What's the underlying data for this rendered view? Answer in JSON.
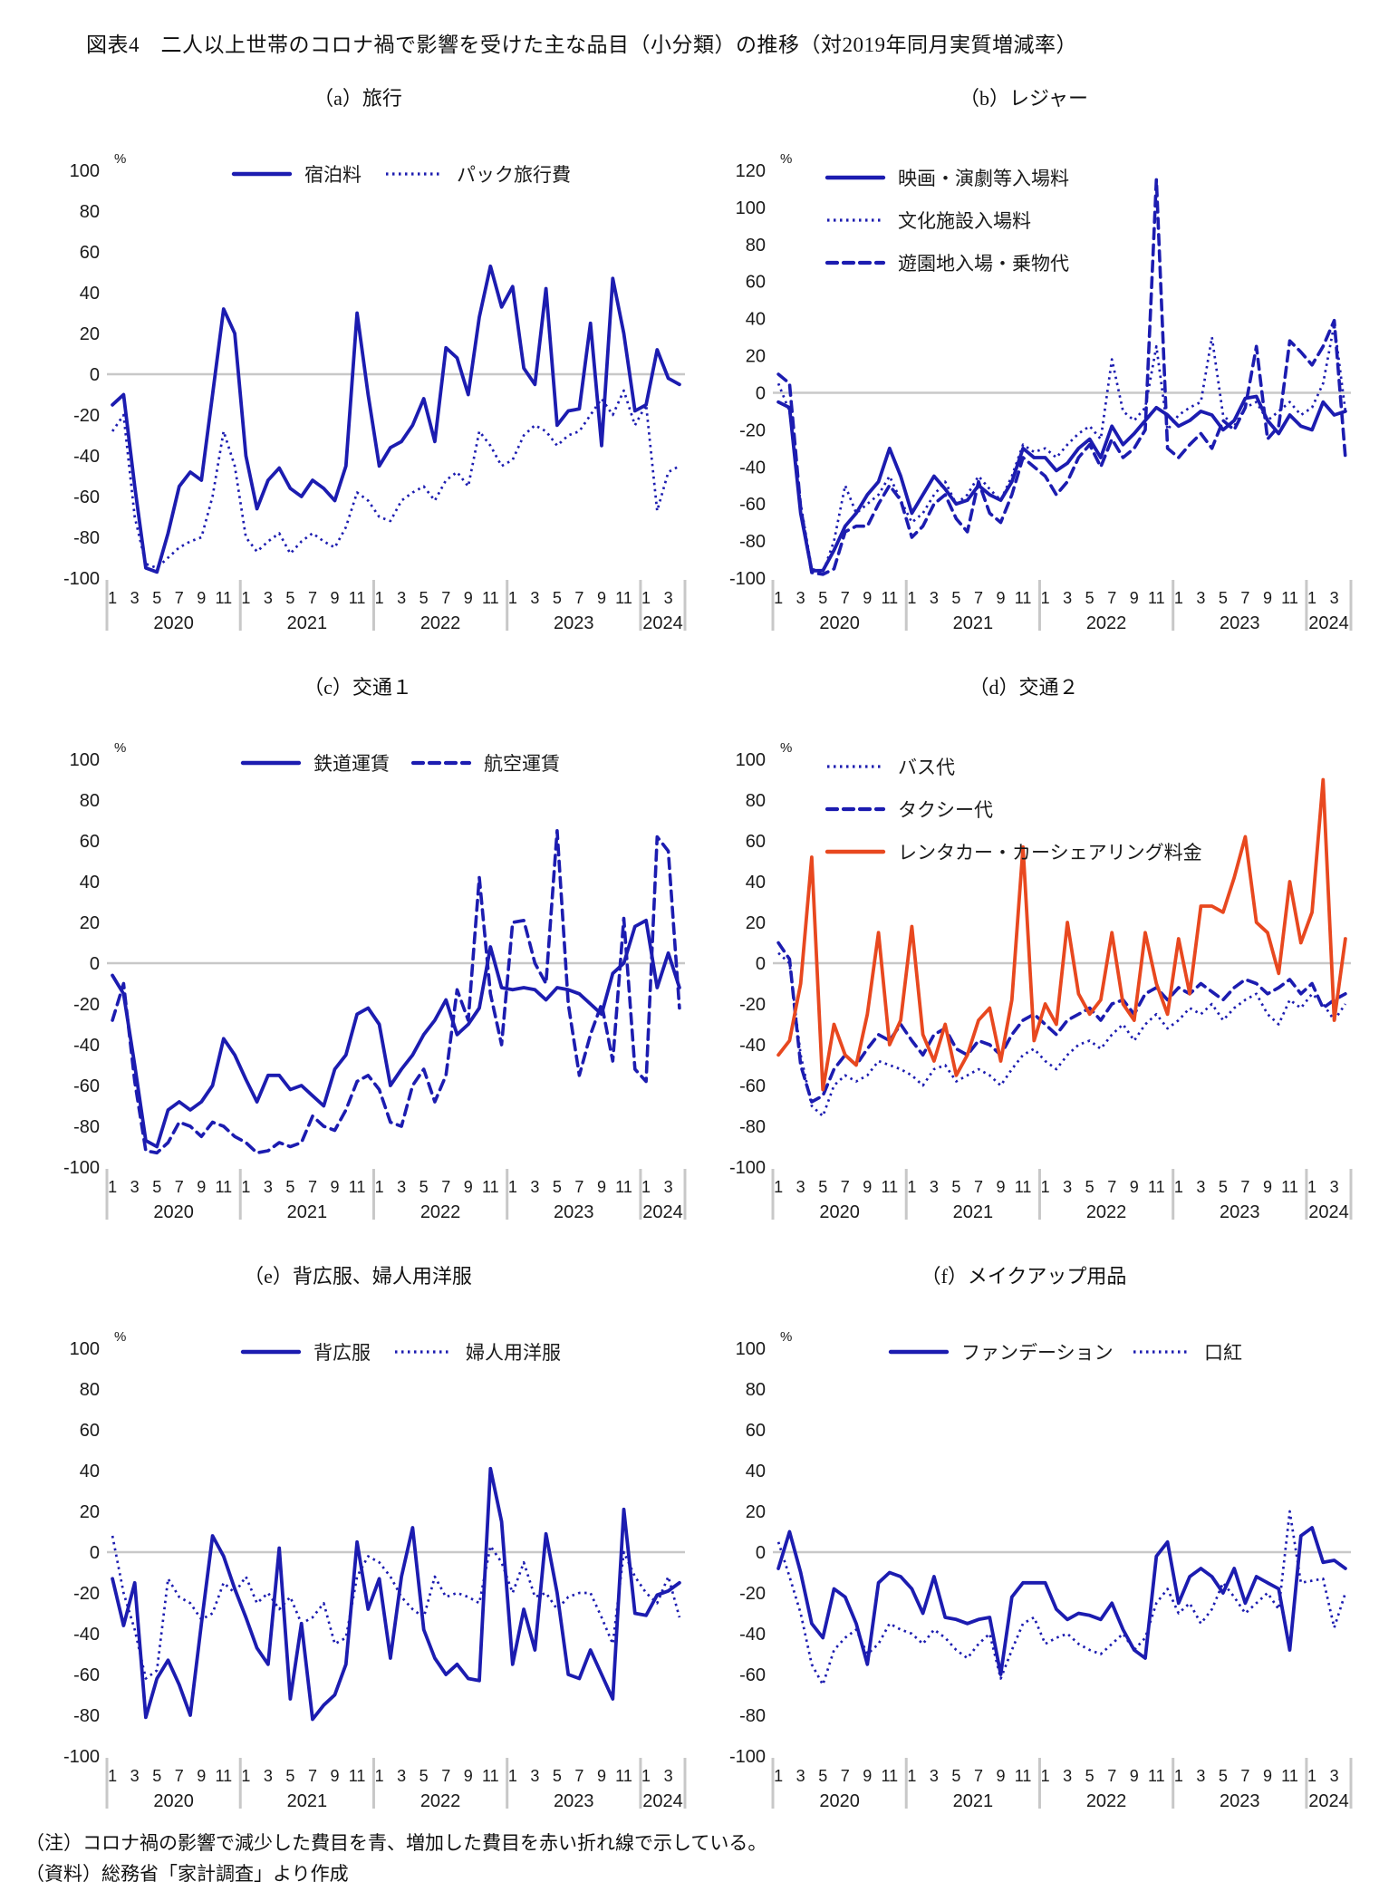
{
  "title": "図表4　二人以上世帯のコロナ禍で影響を受けた主な品目（小分類）の推移（対2019年同月実質増減率）",
  "notes": {
    "note": "（注）コロナ禍の影響で減少した費目を青、増加した費目を赤い折れ線で示している。",
    "source": "（資料）総務省「家計調査」より作成"
  },
  "colors": {
    "blue": "#1c1cb0",
    "red": "#e8481f",
    "grid": "#c8c8c8",
    "text": "#1a1a1a"
  },
  "axis": {
    "unit": "%",
    "month_ticks": [
      "1",
      "3",
      "5",
      "7",
      "9",
      "11"
    ],
    "month_ticks_final_year": [
      "1",
      "3"
    ],
    "years": [
      "2020",
      "2021",
      "2022",
      "2023",
      "2024"
    ],
    "x_start": "2020-01",
    "x_end": "2024-04",
    "n_months": 52
  },
  "chart_data": [
    {
      "key": "a",
      "title": "（a）旅行",
      "type": "line",
      "ylim": [
        -100,
        100
      ],
      "yticks": [
        100,
        80,
        60,
        40,
        20,
        0,
        -20,
        -40,
        -60,
        -80,
        -100
      ],
      "legend": {
        "layout": "row"
      },
      "series": [
        {
          "name": "宿泊料",
          "color": "blue",
          "style": "solid",
          "values": [
            -15,
            -10,
            -55,
            -95,
            -97,
            -78,
            -55,
            -48,
            -52,
            -10,
            32,
            20,
            -40,
            -66,
            -52,
            -46,
            -56,
            -60,
            -52,
            -56,
            -62,
            -45,
            30,
            -10,
            -45,
            -36,
            -33,
            -25,
            -12,
            -33,
            13,
            8,
            -10,
            28,
            53,
            33,
            43,
            3,
            -5,
            42,
            -25,
            -18,
            -17,
            25,
            -35,
            47,
            20,
            -18,
            -15,
            12,
            -2,
            -5
          ]
        },
        {
          "name": "パック旅行費",
          "color": "blue",
          "style": "dotted",
          "values": [
            -28,
            -20,
            -70,
            -93,
            -95,
            -90,
            -85,
            -82,
            -80,
            -60,
            -28,
            -45,
            -80,
            -87,
            -82,
            -78,
            -88,
            -82,
            -78,
            -82,
            -85,
            -75,
            -58,
            -62,
            -70,
            -72,
            -62,
            -58,
            -55,
            -62,
            -52,
            -48,
            -55,
            -28,
            -35,
            -45,
            -42,
            -30,
            -25,
            -28,
            -35,
            -30,
            -28,
            -20,
            -12,
            -20,
            -8,
            -25,
            -15,
            -67,
            -48,
            -45
          ]
        }
      ]
    },
    {
      "key": "b",
      "title": "（b）レジャー",
      "type": "line",
      "ylim": [
        -100,
        120
      ],
      "yticks": [
        120,
        100,
        80,
        60,
        40,
        20,
        0,
        -20,
        -40,
        -60,
        -80,
        -100
      ],
      "legend": {
        "layout": "column"
      },
      "series": [
        {
          "name": "映画・演劇等入場料",
          "color": "blue",
          "style": "solid",
          "values": [
            -5,
            -8,
            -65,
            -96,
            -96,
            -85,
            -72,
            -65,
            -55,
            -48,
            -30,
            -45,
            -65,
            -55,
            -45,
            -52,
            -60,
            -58,
            -50,
            -55,
            -58,
            -48,
            -30,
            -35,
            -35,
            -42,
            -38,
            -30,
            -25,
            -35,
            -18,
            -28,
            -22,
            -15,
            -8,
            -12,
            -18,
            -15,
            -10,
            -12,
            -20,
            -15,
            -3,
            -2,
            -15,
            -22,
            -12,
            -18,
            -20,
            -5,
            -12,
            -10
          ]
        },
        {
          "name": "文化施設入場料",
          "color": "blue",
          "style": "dotted",
          "values": [
            5,
            -10,
            -60,
            -95,
            -97,
            -80,
            -50,
            -65,
            -60,
            -55,
            -45,
            -58,
            -70,
            -65,
            -55,
            -48,
            -60,
            -55,
            -45,
            -52,
            -58,
            -45,
            -28,
            -32,
            -30,
            -35,
            -28,
            -22,
            -18,
            -25,
            18,
            -10,
            -15,
            -8,
            25,
            -20,
            -12,
            -8,
            -5,
            30,
            -12,
            -18,
            -8,
            -5,
            -15,
            -10,
            -5,
            -12,
            -8,
            5,
            37,
            -10
          ]
        },
        {
          "name": "遊園地入場・乗物代",
          "color": "blue",
          "style": "dashed",
          "values": [
            10,
            5,
            -62,
            -97,
            -98,
            -95,
            -75,
            -72,
            -72,
            -60,
            -50,
            -58,
            -78,
            -72,
            -60,
            -55,
            -68,
            -75,
            -48,
            -65,
            -70,
            -55,
            -35,
            -40,
            -45,
            -55,
            -48,
            -35,
            -28,
            -40,
            -25,
            -35,
            -30,
            -20,
            115,
            -30,
            -35,
            -28,
            -22,
            -30,
            -15,
            -20,
            -8,
            25,
            -25,
            -18,
            28,
            22,
            15,
            25,
            39,
            -35
          ]
        }
      ]
    },
    {
      "key": "c",
      "title": "（c）交通１",
      "type": "line",
      "ylim": [
        -100,
        100
      ],
      "yticks": [
        100,
        80,
        60,
        40,
        20,
        0,
        -20,
        -40,
        -60,
        -80,
        -100
      ],
      "legend": {
        "layout": "row"
      },
      "series": [
        {
          "name": "鉄道運賃",
          "color": "blue",
          "style": "solid",
          "values": [
            -6,
            -15,
            -50,
            -87,
            -90,
            -72,
            -68,
            -72,
            -68,
            -60,
            -37,
            -45,
            -57,
            -68,
            -55,
            -55,
            -62,
            -60,
            -65,
            -70,
            -52,
            -45,
            -25,
            -22,
            -30,
            -60,
            -52,
            -45,
            -35,
            -28,
            -18,
            -35,
            -30,
            -22,
            8,
            -12,
            -13,
            -12,
            -13,
            -18,
            -12,
            -13,
            -15,
            -20,
            -25,
            -5,
            0,
            18,
            21,
            -12,
            5,
            -12
          ]
        },
        {
          "name": "航空運賃",
          "color": "blue",
          "style": "dashed",
          "values": [
            -28,
            -10,
            -58,
            -92,
            -93,
            -88,
            -78,
            -80,
            -85,
            -78,
            -80,
            -85,
            -88,
            -93,
            -92,
            -88,
            -90,
            -88,
            -75,
            -80,
            -82,
            -72,
            -58,
            -55,
            -62,
            -78,
            -80,
            -60,
            -52,
            -68,
            -55,
            -13,
            -28,
            42,
            -15,
            -40,
            20,
            21,
            0,
            -10,
            65,
            -20,
            -55,
            -35,
            -20,
            -48,
            22,
            -52,
            -58,
            62,
            55,
            -22
          ]
        }
      ]
    },
    {
      "key": "d",
      "title": "（d）交通２",
      "type": "line",
      "ylim": [
        -100,
        100
      ],
      "yticks": [
        100,
        80,
        60,
        40,
        20,
        0,
        -20,
        -40,
        -60,
        -80,
        -100
      ],
      "legend": {
        "layout": "column"
      },
      "series": [
        {
          "name": "バス代",
          "color": "blue",
          "style": "dotted",
          "values": [
            5,
            0,
            -45,
            -70,
            -75,
            -60,
            -55,
            -58,
            -55,
            -48,
            -50,
            -52,
            -55,
            -60,
            -52,
            -50,
            -58,
            -55,
            -52,
            -55,
            -60,
            -52,
            -45,
            -42,
            -48,
            -52,
            -45,
            -40,
            -38,
            -42,
            -35,
            -30,
            -38,
            -30,
            -25,
            -32,
            -28,
            -22,
            -25,
            -20,
            -28,
            -22,
            -18,
            -15,
            -25,
            -30,
            -18,
            -22,
            -15,
            -20,
            -28,
            -20
          ]
        },
        {
          "name": "タクシー代",
          "color": "blue",
          "style": "dashed",
          "values": [
            10,
            2,
            -50,
            -68,
            -65,
            -52,
            -45,
            -50,
            -42,
            -35,
            -38,
            -30,
            -38,
            -45,
            -35,
            -32,
            -42,
            -45,
            -38,
            -40,
            -45,
            -35,
            -28,
            -25,
            -30,
            -35,
            -28,
            -25,
            -22,
            -28,
            -20,
            -18,
            -25,
            -15,
            -12,
            -18,
            -12,
            -15,
            -10,
            -14,
            -18,
            -12,
            -8,
            -10,
            -15,
            -12,
            -8,
            -15,
            -10,
            -22,
            -18,
            -15
          ]
        },
        {
          "name": "レンタカー・カーシェアリング料金",
          "color": "red",
          "style": "solid",
          "values": [
            -45,
            -38,
            -10,
            52,
            -62,
            -30,
            -45,
            -50,
            -25,
            15,
            -40,
            -28,
            18,
            -35,
            -48,
            -30,
            -55,
            -45,
            -28,
            -22,
            -48,
            -18,
            57,
            -38,
            -20,
            -30,
            20,
            -15,
            -25,
            -18,
            15,
            -20,
            -28,
            15,
            -10,
            -25,
            12,
            -15,
            28,
            28,
            25,
            42,
            62,
            20,
            15,
            -5,
            40,
            10,
            25,
            90,
            -28,
            12
          ]
        }
      ]
    },
    {
      "key": "e",
      "title": "（e）背広服、婦人用洋服",
      "type": "line",
      "ylim": [
        -100,
        100
      ],
      "yticks": [
        100,
        80,
        60,
        40,
        20,
        0,
        -20,
        -40,
        -60,
        -80,
        -100
      ],
      "legend": {
        "layout": "row"
      },
      "series": [
        {
          "name": "背広服",
          "color": "blue",
          "style": "solid",
          "values": [
            -13,
            -36,
            -15,
            -81,
            -62,
            -53,
            -65,
            -80,
            -35,
            8,
            -2,
            -18,
            -32,
            -47,
            -55,
            2,
            -72,
            -35,
            -82,
            -75,
            -70,
            -55,
            5,
            -28,
            -13,
            -52,
            -12,
            12,
            -38,
            -52,
            -60,
            -55,
            -62,
            -63,
            41,
            15,
            -55,
            -28,
            -48,
            9,
            -20,
            -60,
            -62,
            -48,
            -60,
            -72,
            21,
            -30,
            -31,
            -21,
            -19,
            -15
          ]
        },
        {
          "name": "婦人用洋服",
          "color": "blue",
          "style": "dotted",
          "values": [
            8,
            -20,
            -38,
            -62,
            -58,
            -13,
            -22,
            -25,
            -33,
            -30,
            -15,
            -20,
            -12,
            -25,
            -20,
            -28,
            -22,
            -35,
            -32,
            -25,
            -45,
            -42,
            -12,
            -2,
            -5,
            -12,
            -22,
            -28,
            -32,
            -12,
            -22,
            -20,
            -22,
            -25,
            3,
            -5,
            -20,
            -5,
            -22,
            -20,
            -28,
            -22,
            -20,
            -20,
            -32,
            -45,
            0,
            -12,
            -20,
            -25,
            -12,
            -32
          ]
        }
      ]
    },
    {
      "key": "f",
      "title": "（f）メイクアップ用品",
      "type": "line",
      "ylim": [
        -100,
        100
      ],
      "yticks": [
        100,
        80,
        60,
        40,
        20,
        0,
        -20,
        -40,
        -60,
        -80,
        -100
      ],
      "legend": {
        "layout": "row"
      },
      "series": [
        {
          "name": "ファンデーション",
          "color": "blue",
          "style": "solid",
          "values": [
            -8,
            10,
            -10,
            -35,
            -42,
            -18,
            -22,
            -35,
            -55,
            -15,
            -10,
            -12,
            -18,
            -30,
            -12,
            -32,
            -33,
            -35,
            -33,
            -32,
            -60,
            -22,
            -15,
            -15,
            -15,
            -28,
            -33,
            -30,
            -31,
            -33,
            -25,
            -38,
            -48,
            -52,
            -2,
            5,
            -25,
            -12,
            -8,
            -12,
            -20,
            -8,
            -25,
            -12,
            -15,
            -18,
            -48,
            8,
            12,
            -5,
            -4,
            -8
          ]
        },
        {
          "name": "口紅",
          "color": "blue",
          "style": "dotted",
          "values": [
            5,
            -12,
            -30,
            -55,
            -65,
            -48,
            -42,
            -38,
            -50,
            -45,
            -35,
            -38,
            -40,
            -45,
            -38,
            -42,
            -48,
            -52,
            -45,
            -40,
            -62,
            -48,
            -35,
            -32,
            -45,
            -42,
            -40,
            -45,
            -48,
            -50,
            -45,
            -40,
            -48,
            -42,
            -25,
            -18,
            -30,
            -25,
            -35,
            -28,
            -15,
            -22,
            -30,
            -25,
            -20,
            -28,
            20,
            -15,
            -14,
            -13,
            -37,
            -20
          ]
        }
      ]
    }
  ]
}
